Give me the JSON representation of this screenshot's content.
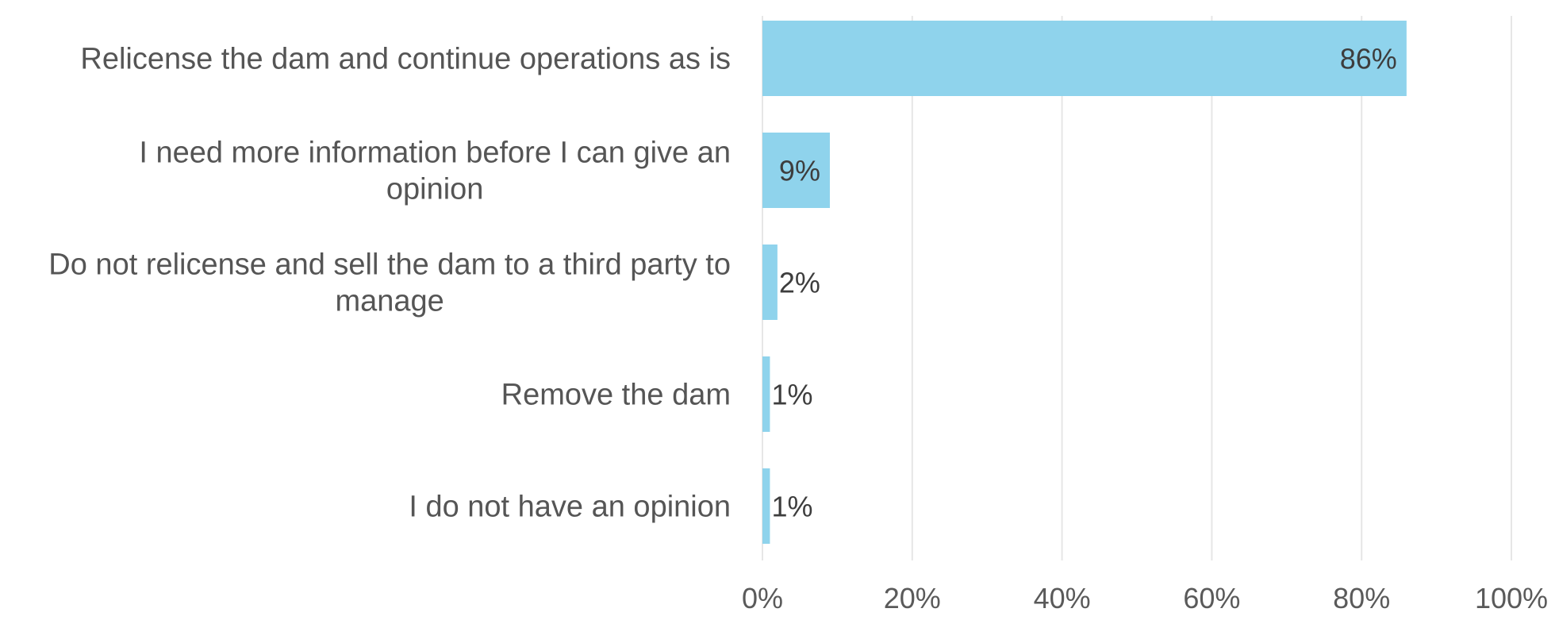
{
  "chart_data": {
    "type": "bar",
    "orientation": "horizontal",
    "categories": [
      [
        "Relicense the dam and continue operations as is"
      ],
      [
        "I need more information before I can give an",
        "opinion"
      ],
      [
        "Do not relicense and sell the dam to a third party to",
        "manage"
      ],
      [
        "Remove the dam"
      ],
      [
        "I do not have an opinion"
      ]
    ],
    "values": [
      86,
      9,
      2,
      1,
      1
    ],
    "value_labels": [
      "86%",
      "9%",
      "2%",
      "1%",
      "1%"
    ],
    "x_ticks": [
      0,
      20,
      40,
      60,
      80,
      100
    ],
    "x_tick_labels": [
      "0%",
      "20%",
      "40%",
      "60%",
      "80%",
      "100%"
    ],
    "xlim": [
      0,
      100
    ],
    "grid": true,
    "legend": "none",
    "bar_color": "#8fd3ec"
  }
}
